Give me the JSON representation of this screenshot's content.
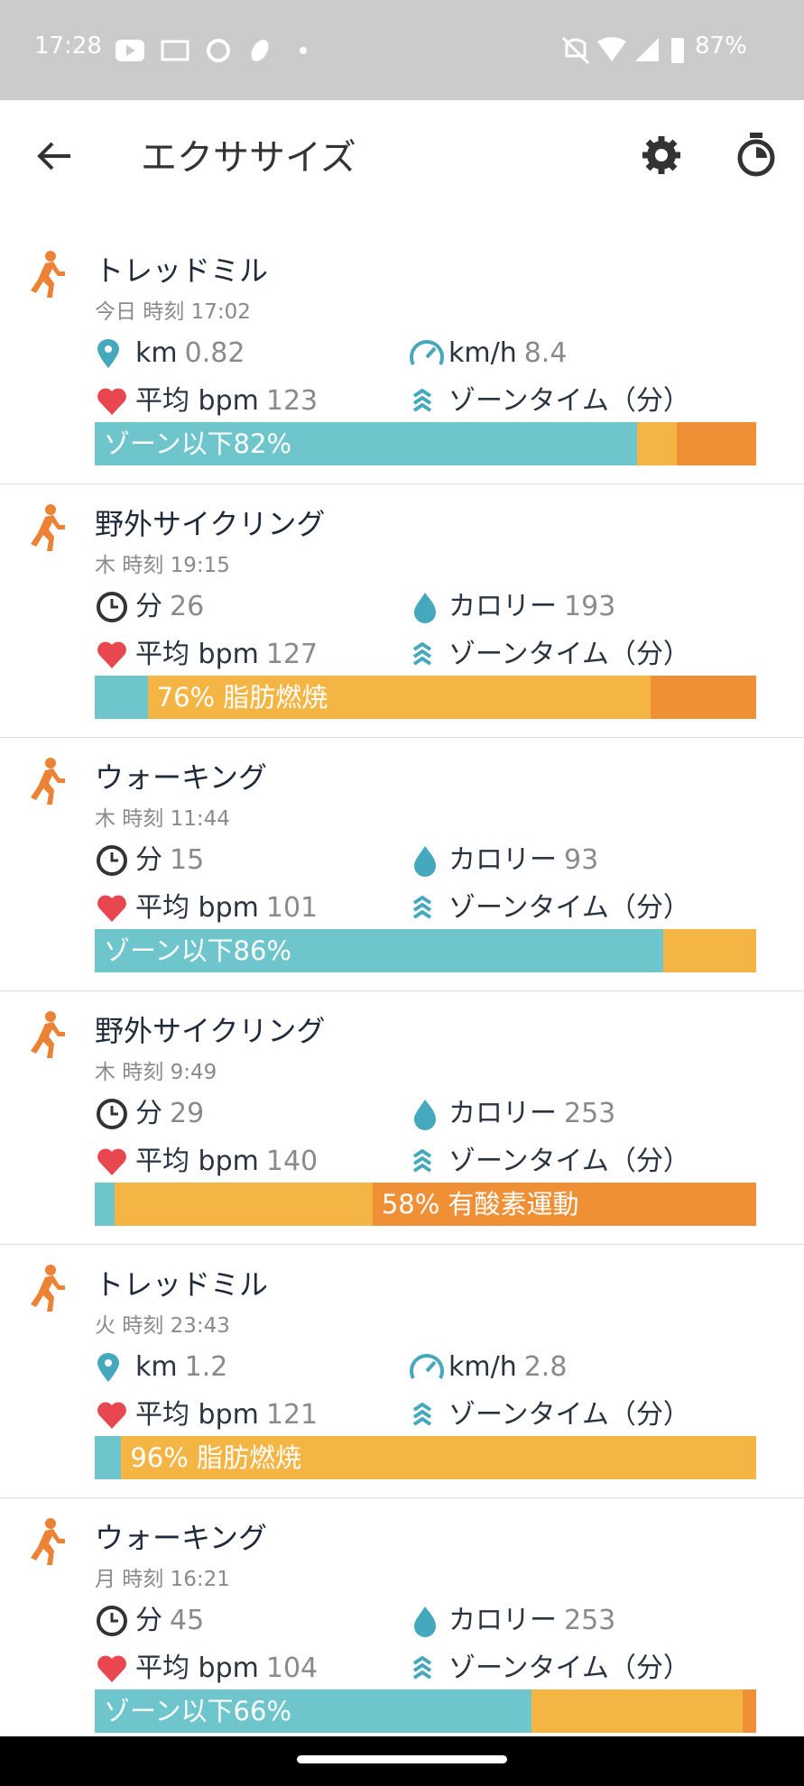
{
  "status_bar": {
    "time": "17:28",
    "battery": "87%"
  },
  "app_bar": {
    "title": "エクササイズ"
  },
  "activities": [
    {
      "title": "トレッドミル",
      "date": "今日 時刻 17:02",
      "distance": {
        "unit": "km",
        "value": "0.82"
      },
      "speed": {
        "unit": "km/h",
        "value": "8.4"
      },
      "heart_rate": {
        "unit": "平均 bpm",
        "value": "123"
      },
      "zone_time_label": "ゾーンタイム（分）",
      "zone_bar": [
        {
          "color": "#6ec6cc",
          "value": 82,
          "label": "ゾーン以下82%"
        },
        {
          "color": "#f4b544",
          "value": 6
        },
        {
          "color": "#ef9037",
          "value": 12
        }
      ]
    },
    {
      "title": "野外サイクリング",
      "date": "木 時刻 19:15",
      "duration": {
        "unit": "分",
        "value": "26"
      },
      "calories": {
        "unit": "カロリー",
        "value": "193"
      },
      "heart_rate": {
        "unit": "平均 bpm",
        "value": "127"
      },
      "zone_time_label": "ゾーンタイム（分）",
      "zone_bar": [
        {
          "color": "#6ec6cc",
          "value": 8
        },
        {
          "color": "#f4b544",
          "value": 76,
          "label": "76% 脂肪燃焼"
        },
        {
          "color": "#ef9037",
          "value": 16
        }
      ]
    },
    {
      "title": "ウォーキング",
      "date": "木 時刻 11:44",
      "duration": {
        "unit": "分",
        "value": "15"
      },
      "calories": {
        "unit": "カロリー",
        "value": "93"
      },
      "heart_rate": {
        "unit": "平均 bpm",
        "value": "101"
      },
      "zone_time_label": "ゾーンタイム（分）",
      "zone_bar": [
        {
          "color": "#6ec6cc",
          "value": 86,
          "label": "ゾーン以下86%"
        },
        {
          "color": "#f4b544",
          "value": 14
        }
      ]
    },
    {
      "title": "野外サイクリング",
      "date": "木 時刻 9:49",
      "duration": {
        "unit": "分",
        "value": "29"
      },
      "calories": {
        "unit": "カロリー",
        "value": "253"
      },
      "heart_rate": {
        "unit": "平均 bpm",
        "value": "140"
      },
      "zone_time_label": "ゾーンタイム（分）",
      "zone_bar": [
        {
          "color": "#6ec6cc",
          "value": 3
        },
        {
          "color": "#f4b544",
          "value": 39
        },
        {
          "color": "#ef9037",
          "value": 58,
          "label": "58% 有酸素運動"
        }
      ]
    },
    {
      "title": "トレッドミル",
      "date": "火 時刻 23:43",
      "distance": {
        "unit": "km",
        "value": "1.2"
      },
      "speed": {
        "unit": "km/h",
        "value": "2.8"
      },
      "heart_rate": {
        "unit": "平均 bpm",
        "value": "121"
      },
      "zone_time_label": "ゾーンタイム（分）",
      "zone_bar": [
        {
          "color": "#6ec6cc",
          "value": 4
        },
        {
          "color": "#f4b544",
          "value": 96,
          "label": "96% 脂肪燃焼"
        }
      ]
    },
    {
      "title": "ウォーキング",
      "date": "月 時刻 16:21",
      "duration": {
        "unit": "分",
        "value": "45"
      },
      "calories": {
        "unit": "カロリー",
        "value": "253"
      },
      "heart_rate": {
        "unit": "平均 bpm",
        "value": "104"
      },
      "zone_time_label": "ゾーンタイム（分）",
      "zone_bar": [
        {
          "color": "#6ec6cc",
          "value": 66,
          "label": "ゾーン以下66%"
        },
        {
          "color": "#f4b544",
          "value": 32
        },
        {
          "color": "#ef9037",
          "value": 2
        }
      ]
    }
  ]
}
